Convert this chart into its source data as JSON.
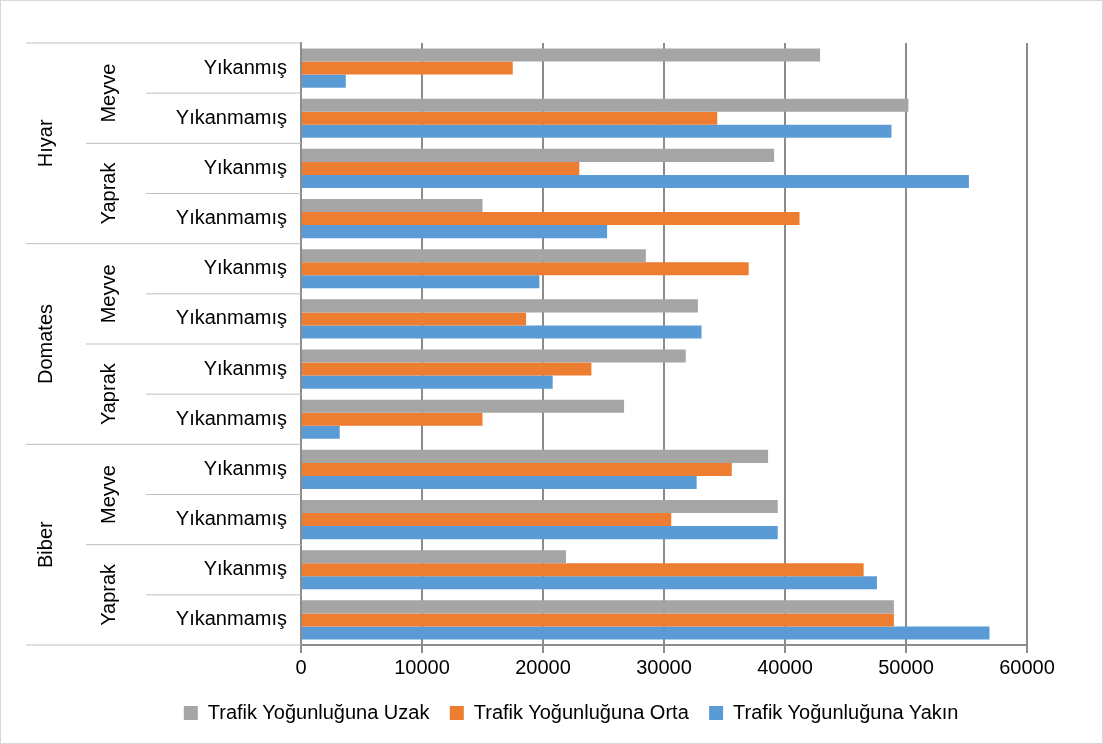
{
  "chart_data": {
    "type": "bar",
    "orientation": "horizontal",
    "categories": [
      "Yıkanmış",
      "Yıkanmamış",
      "Yıkanmış",
      "Yıkanmamış",
      "Yıkanmış",
      "Yıkanmamış",
      "Yıkanmış",
      "Yıkanmamış",
      "Yıkanmış",
      "Yıkanmamış",
      "Yıkanmış",
      "Yıkanmamış"
    ],
    "series": [
      {
        "name": "Trafik Yoğunluğuna Uzak",
        "color": "#a5a5a5",
        "values": [
          42900,
          50200,
          39100,
          15000,
          28500,
          32800,
          31800,
          26700,
          38600,
          39400,
          21900,
          49000
        ]
      },
      {
        "name": "Trafik Yoğunluğuna Orta",
        "color": "#ed7d31",
        "values": [
          17500,
          34400,
          23000,
          41200,
          37000,
          18600,
          24000,
          15000,
          35600,
          30600,
          46500,
          49000
        ]
      },
      {
        "name": "Trafik Yoğunluğuna Yakın",
        "color": "#5b9bd5",
        "values": [
          3700,
          48800,
          55200,
          25300,
          19700,
          33100,
          20800,
          3200,
          32700,
          39400,
          47600,
          56900
        ]
      }
    ],
    "xlim": [
      0,
      60000
    ],
    "xticks": [
      0,
      10000,
      20000,
      30000,
      40000,
      50000,
      60000
    ],
    "grid": "x",
    "legend": "bottom",
    "annotations": [
      "Hıyar",
      "Meyve",
      "Yaprak",
      "Domates",
      "Meyve",
      "Yaprak",
      "Biber",
      "Meyve",
      "Yaprak"
    ]
  }
}
